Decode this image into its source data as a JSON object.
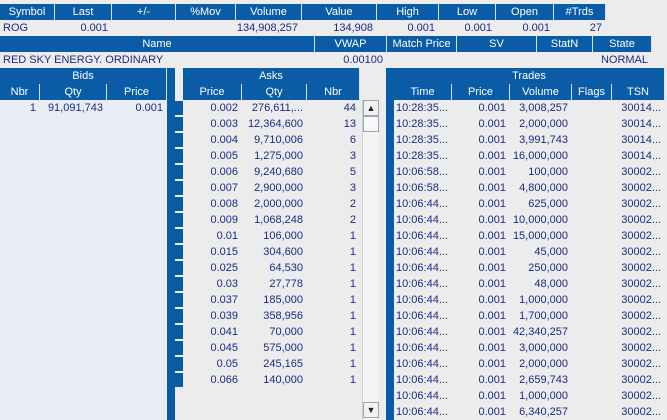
{
  "quote": {
    "headers": [
      "Symbol",
      "Last",
      "+/-",
      "%Mov",
      "Volume",
      "Value",
      "High",
      "Low",
      "Open",
      "#Trds"
    ],
    "values": [
      "ROG",
      "0.001",
      "",
      "",
      "134,908,257",
      "134,908",
      "0.001",
      "0.001",
      "0.001",
      "27"
    ]
  },
  "info": {
    "headers": [
      "Name",
      "VWAP",
      "Match Price",
      "SV",
      "StatN",
      "State"
    ],
    "values": [
      "RED SKY ENERGY. ORDINARY",
      "0.00100",
      "",
      "",
      "",
      "NORMAL"
    ]
  },
  "bids": {
    "title": "Bids",
    "columns": [
      "Nbr",
      "Qty",
      "Price"
    ],
    "rows": [
      [
        "1",
        "91,091,743",
        "0.001"
      ]
    ]
  },
  "asks": {
    "title": "Asks",
    "columns": [
      "Price",
      "Qty",
      "Nbr"
    ],
    "rows": [
      [
        "0.002",
        "276,611,...",
        "44"
      ],
      [
        "0.003",
        "12,364,600",
        "13"
      ],
      [
        "0.004",
        "9,710,006",
        "6"
      ],
      [
        "0.005",
        "1,275,000",
        "3"
      ],
      [
        "0.006",
        "9,240,680",
        "5"
      ],
      [
        "0.007",
        "2,900,000",
        "3"
      ],
      [
        "0.008",
        "2,000,000",
        "2"
      ],
      [
        "0.009",
        "1,068,248",
        "2"
      ],
      [
        "0.01",
        "106,000",
        "1"
      ],
      [
        "0.015",
        "304,600",
        "1"
      ],
      [
        "0.025",
        "64,530",
        "1"
      ],
      [
        "0.03",
        "27,778",
        "1"
      ],
      [
        "0.037",
        "185,000",
        "1"
      ],
      [
        "0.039",
        "358,956",
        "1"
      ],
      [
        "0.041",
        "70,000",
        "1"
      ],
      [
        "0.045",
        "575,000",
        "1"
      ],
      [
        "0.05",
        "245,165",
        "1"
      ],
      [
        "0.066",
        "140,000",
        "1"
      ]
    ]
  },
  "trades": {
    "title": "Trades",
    "columns": [
      "Time",
      "Price",
      "Volume",
      "Flags",
      "TSN"
    ],
    "rows": [
      [
        "10:28:35...",
        "0.001",
        "3,008,257",
        "",
        "30014..."
      ],
      [
        "10:28:35...",
        "0.001",
        "2,000,000",
        "",
        "30014..."
      ],
      [
        "10:28:35...",
        "0.001",
        "3,991,743",
        "",
        "30014..."
      ],
      [
        "10:28:35...",
        "0.001",
        "16,000,000",
        "",
        "30014..."
      ],
      [
        "10:06:58...",
        "0.001",
        "100,000",
        "",
        "30002..."
      ],
      [
        "10:06:58...",
        "0.001",
        "4,800,000",
        "",
        "30002..."
      ],
      [
        "10:06:44...",
        "0.001",
        "625,000",
        "",
        "30002..."
      ],
      [
        "10:06:44...",
        "0.001",
        "10,000,000",
        "",
        "30002..."
      ],
      [
        "10:06:44...",
        "0.001",
        "15,000,000",
        "",
        "30002..."
      ],
      [
        "10:06:44...",
        "0.001",
        "45,000",
        "",
        "30002..."
      ],
      [
        "10:06:44...",
        "0.001",
        "250,000",
        "",
        "30002..."
      ],
      [
        "10:06:44...",
        "0.001",
        "48,000",
        "",
        "30002..."
      ],
      [
        "10:06:44...",
        "0.001",
        "1,000,000",
        "",
        "30002..."
      ],
      [
        "10:06:44...",
        "0.001",
        "1,700,000",
        "",
        "30002..."
      ],
      [
        "10:06:44...",
        "0.001",
        "42,340,257",
        "",
        "30002..."
      ],
      [
        "10:06:44...",
        "0.001",
        "3,000,000",
        "",
        "30002..."
      ],
      [
        "10:06:44...",
        "0.001",
        "2,000,000",
        "",
        "30002..."
      ],
      [
        "10:06:44...",
        "0.001",
        "2,659,743",
        "",
        "30002..."
      ],
      [
        "10:06:44...",
        "0.001",
        "1,000,000",
        "",
        "30002..."
      ],
      [
        "10:06:44...",
        "0.001",
        "6,340,257",
        "",
        "30002..."
      ]
    ]
  },
  "scroll": {
    "up_icon": "arrow-up-icon",
    "down_icon": "arrow-down-icon"
  },
  "colors": {
    "header_bg": "#0b5ca6",
    "text": "#1a2a8c",
    "panel_bg": "#e8edf3"
  }
}
